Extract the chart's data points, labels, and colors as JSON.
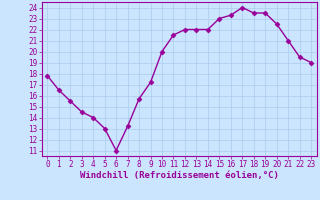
{
  "x": [
    0,
    1,
    2,
    3,
    4,
    5,
    6,
    7,
    8,
    9,
    10,
    11,
    12,
    13,
    14,
    15,
    16,
    17,
    18,
    19,
    20,
    21,
    22,
    23
  ],
  "y": [
    17.8,
    16.5,
    15.5,
    14.5,
    14.0,
    13.0,
    11.0,
    13.2,
    15.7,
    17.2,
    20.0,
    21.5,
    22.0,
    22.0,
    22.0,
    23.0,
    23.3,
    24.0,
    23.5,
    23.5,
    22.5,
    21.0,
    19.5,
    19.0
  ],
  "line_color": "#990099",
  "marker": "D",
  "marker_size": 2.5,
  "bg_color": "#cce5ff",
  "grid_color": "#aaccee",
  "xlabel": "Windchill (Refroidissement éolien,°C)",
  "ylim": [
    10.5,
    24.5
  ],
  "yticks": [
    11,
    12,
    13,
    14,
    15,
    16,
    17,
    18,
    19,
    20,
    21,
    22,
    23,
    24
  ],
  "xticks": [
    0,
    1,
    2,
    3,
    4,
    5,
    6,
    7,
    8,
    9,
    10,
    11,
    12,
    13,
    14,
    15,
    16,
    17,
    18,
    19,
    20,
    21,
    22,
    23
  ],
  "xlabel_fontsize": 6.5,
  "tick_fontsize": 5.5,
  "linewidth": 1.0
}
